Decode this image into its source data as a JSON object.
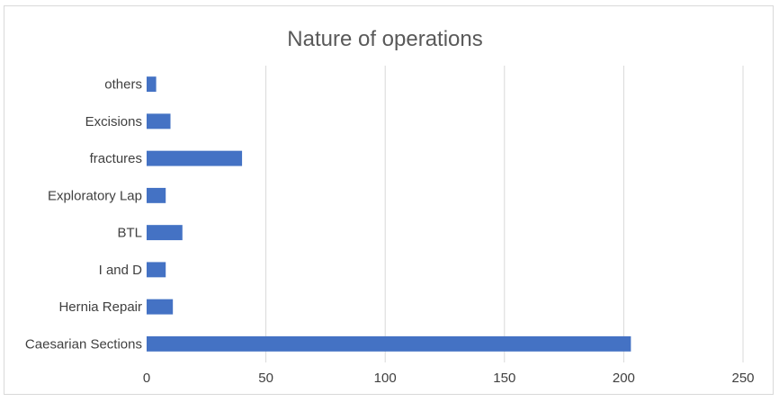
{
  "chart_data": {
    "type": "bar",
    "orientation": "horizontal",
    "title": "Nature of operations",
    "categories": [
      "Caesarian Sections",
      "Hernia Repair",
      "I and D",
      "BTL",
      "Exploratory Lap",
      "fractures",
      "Excisions",
      "others"
    ],
    "values": [
      203,
      11,
      8,
      15,
      8,
      40,
      10,
      4
    ],
    "xlim": [
      0,
      250
    ],
    "xticks": [
      "0",
      "50",
      "100",
      "150",
      "200",
      "250"
    ],
    "xlabel": "",
    "ylabel": "",
    "grid": true,
    "legend": "none",
    "bar_color": "#4472c4"
  }
}
